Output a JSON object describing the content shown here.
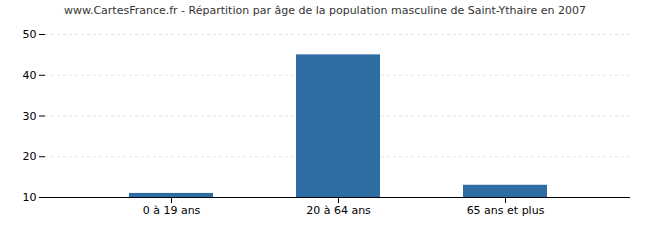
{
  "chart_data": {
    "type": "bar",
    "title": "www.CartesFrance.fr - Répartition par âge de la population masculine de Saint-Ythaire en 2007",
    "categories": [
      "0 à 19 ans",
      "20 à 64 ans",
      "65 ans et plus"
    ],
    "values": [
      11,
      45,
      13
    ],
    "color": "#2e6da4",
    "ylim": [
      10,
      50
    ],
    "yticks": [
      10,
      20,
      30,
      40,
      50
    ],
    "grid": true
  }
}
